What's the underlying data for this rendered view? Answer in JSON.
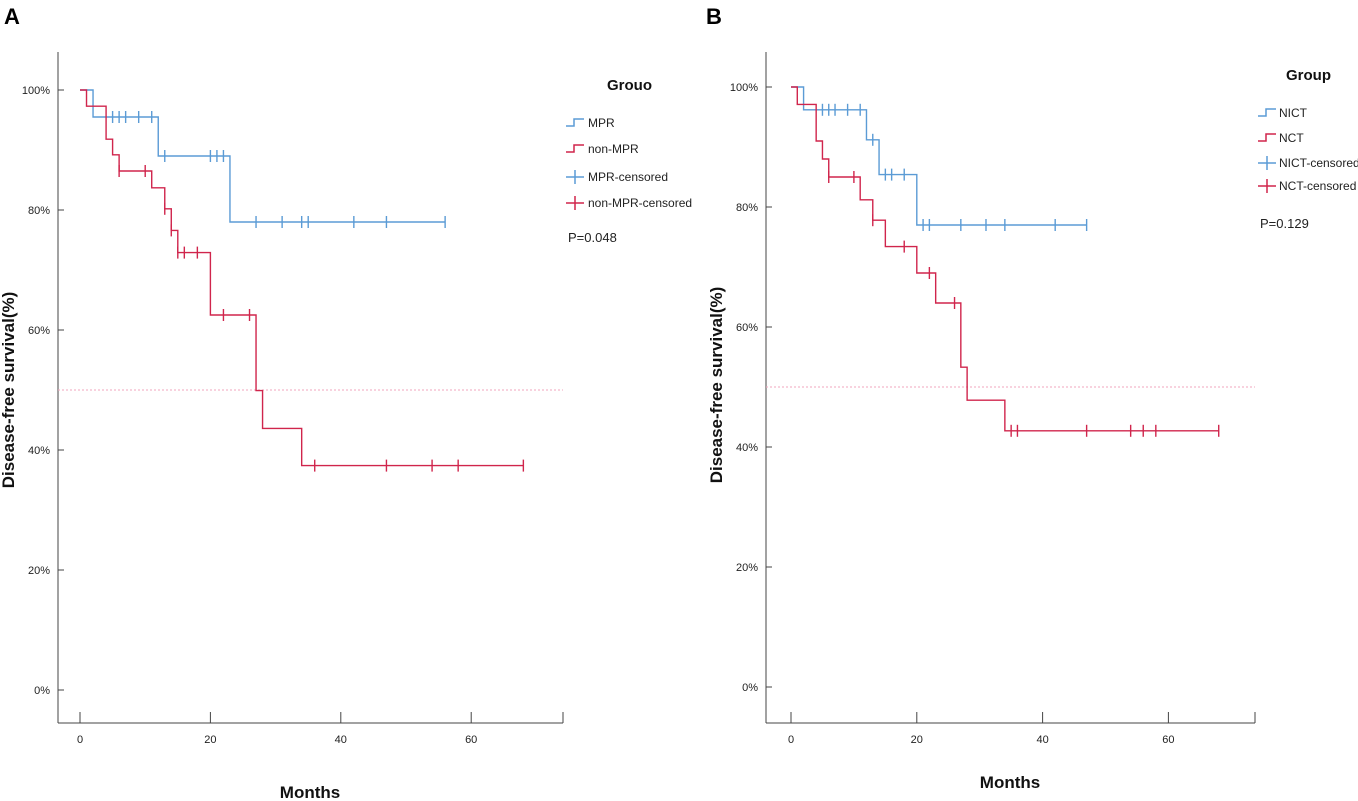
{
  "chart_data": [
    {
      "panel": "A",
      "type": "line",
      "subtype": "kaplan-meier",
      "xlabel": "Months",
      "ylabel": "Disease-free survival(%)",
      "xlim": [
        -2,
        75
      ],
      "ylim": [
        -5,
        105
      ],
      "xticks": [
        0,
        20,
        40,
        60
      ],
      "yticks": [
        0,
        20,
        40,
        60,
        80,
        100
      ],
      "ytick_labels": [
        "0%",
        "20%",
        "40%",
        "60%",
        "80%",
        "100%"
      ],
      "legend_title": "Grouo",
      "legend_labels": [
        "MPR",
        "non-MPR",
        "MPR-censored",
        "non-MPR-censored"
      ],
      "p_value": "P=0.048",
      "reference_line": 50,
      "series": [
        {
          "name": "MPR",
          "color": "#5b9bd5",
          "steps": [
            [
              0,
              100
            ],
            [
              2,
              95.5
            ],
            [
              12,
              89
            ],
            [
              23,
              78
            ],
            [
              56,
              78
            ]
          ],
          "censored": [
            [
              5,
              95.5
            ],
            [
              6,
              95.5
            ],
            [
              7,
              95.5
            ],
            [
              9,
              95.5
            ],
            [
              11,
              95.5
            ],
            [
              13,
              89
            ],
            [
              20,
              89
            ],
            [
              21,
              89
            ],
            [
              22,
              89
            ],
            [
              27,
              78
            ],
            [
              31,
              78
            ],
            [
              34,
              78
            ],
            [
              35,
              78
            ],
            [
              42,
              78
            ],
            [
              47,
              78
            ],
            [
              56,
              78
            ]
          ]
        },
        {
          "name": "non-MPR",
          "color": "#d0254c",
          "steps": [
            [
              0,
              100
            ],
            [
              1,
              97.3
            ],
            [
              4,
              91.8
            ],
            [
              5,
              89.2
            ],
            [
              6,
              86.5
            ],
            [
              11,
              83.7
            ],
            [
              13,
              80.2
            ],
            [
              14,
              76.6
            ],
            [
              15,
              72.9
            ],
            [
              20,
              62.5
            ],
            [
              27,
              49.9
            ],
            [
              28,
              43.6
            ],
            [
              34,
              37.4
            ],
            [
              68,
              37.4
            ]
          ],
          "censored": [
            [
              6,
              86.5
            ],
            [
              10,
              86.5
            ],
            [
              13,
              80.2
            ],
            [
              14,
              76.6
            ],
            [
              15,
              72.9
            ],
            [
              16,
              72.9
            ],
            [
              18,
              72.9
            ],
            [
              22,
              62.5
            ],
            [
              26,
              62.5
            ],
            [
              36,
              37.4
            ],
            [
              47,
              37.4
            ],
            [
              54,
              37.4
            ],
            [
              58,
              37.4
            ],
            [
              68,
              37.4
            ]
          ]
        }
      ]
    },
    {
      "panel": "B",
      "type": "line",
      "subtype": "kaplan-meier",
      "xlabel": "Months",
      "ylabel": "Disease-free survival(%)",
      "xlim": [
        -2,
        74
      ],
      "ylim": [
        -5,
        105
      ],
      "xticks": [
        0,
        20,
        40,
        60
      ],
      "yticks": [
        0,
        20,
        40,
        60,
        80,
        100
      ],
      "ytick_labels": [
        "0%",
        "20%",
        "40%",
        "60%",
        "80%",
        "100%"
      ],
      "legend_title": "Group",
      "legend_labels": [
        "NICT",
        "NCT",
        "NICT-censored",
        "NCT-censored"
      ],
      "p_value": "P=0.129",
      "reference_line": 50,
      "series": [
        {
          "name": "NICT",
          "color": "#5b9bd5",
          "steps": [
            [
              0,
              100
            ],
            [
              2,
              96.2
            ],
            [
              12,
              91.2
            ],
            [
              14,
              85.4
            ],
            [
              20,
              77
            ],
            [
              47,
              77
            ]
          ],
          "censored": [
            [
              5,
              96.2
            ],
            [
              6,
              96.2
            ],
            [
              7,
              96.2
            ],
            [
              9,
              96.2
            ],
            [
              11,
              96.2
            ],
            [
              13,
              91.2
            ],
            [
              15,
              85.4
            ],
            [
              16,
              85.4
            ],
            [
              18,
              85.4
            ],
            [
              21,
              77
            ],
            [
              22,
              77
            ],
            [
              27,
              77
            ],
            [
              31,
              77
            ],
            [
              34,
              77
            ],
            [
              42,
              77
            ],
            [
              47,
              77
            ]
          ]
        },
        {
          "name": "NCT",
          "color": "#d0254c",
          "steps": [
            [
              0,
              100
            ],
            [
              1,
              97.1
            ],
            [
              4,
              91
            ],
            [
              5,
              88
            ],
            [
              6,
              85
            ],
            [
              11,
              81.2
            ],
            [
              13,
              77.8
            ],
            [
              15,
              73.4
            ],
            [
              20,
              69
            ],
            [
              23,
              64
            ],
            [
              27,
              53.3
            ],
            [
              28,
              47.8
            ],
            [
              34,
              42.7
            ],
            [
              68,
              42.7
            ]
          ],
          "censored": [
            [
              6,
              85
            ],
            [
              10,
              85
            ],
            [
              13,
              77.8
            ],
            [
              18,
              73.4
            ],
            [
              22,
              69
            ],
            [
              26,
              64
            ],
            [
              35,
              42.7
            ],
            [
              36,
              42.7
            ],
            [
              47,
              42.7
            ],
            [
              54,
              42.7
            ],
            [
              56,
              42.7
            ],
            [
              58,
              42.7
            ],
            [
              68,
              42.7
            ]
          ]
        }
      ]
    }
  ]
}
